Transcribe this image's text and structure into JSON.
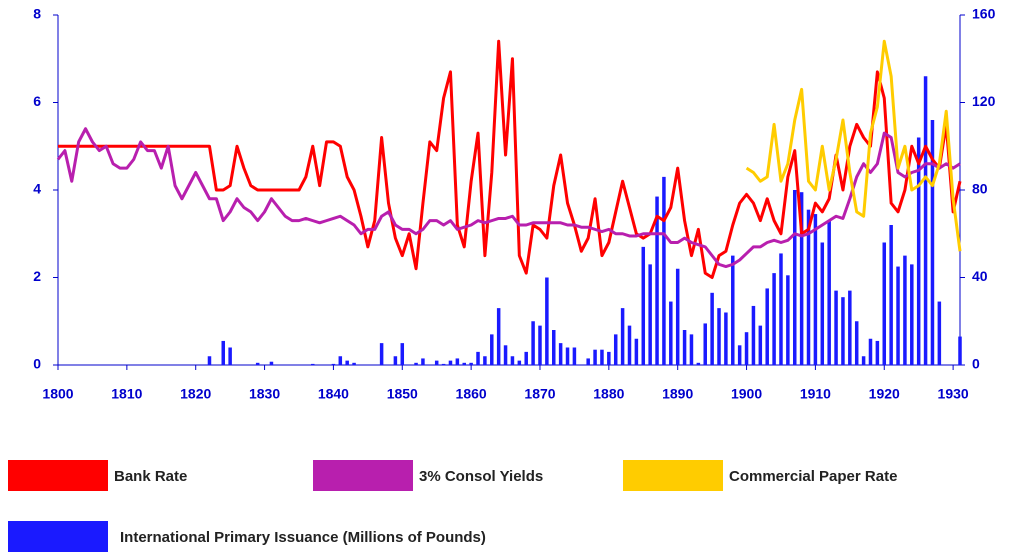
{
  "chart_data": {
    "type": "line",
    "x": [
      1800,
      1801,
      1802,
      1803,
      1804,
      1805,
      1806,
      1807,
      1808,
      1809,
      1810,
      1811,
      1812,
      1813,
      1814,
      1815,
      1816,
      1817,
      1818,
      1819,
      1820,
      1821,
      1822,
      1823,
      1824,
      1825,
      1826,
      1827,
      1828,
      1829,
      1830,
      1831,
      1832,
      1833,
      1834,
      1835,
      1836,
      1837,
      1838,
      1839,
      1840,
      1841,
      1842,
      1843,
      1844,
      1845,
      1846,
      1847,
      1848,
      1849,
      1850,
      1851,
      1852,
      1853,
      1854,
      1855,
      1856,
      1857,
      1858,
      1859,
      1860,
      1861,
      1862,
      1863,
      1864,
      1865,
      1866,
      1867,
      1868,
      1869,
      1870,
      1871,
      1872,
      1873,
      1874,
      1875,
      1876,
      1877,
      1878,
      1879,
      1880,
      1881,
      1882,
      1883,
      1884,
      1885,
      1886,
      1887,
      1888,
      1889,
      1890,
      1891,
      1892,
      1893,
      1894,
      1895,
      1896,
      1897,
      1898,
      1899,
      1900,
      1901,
      1902,
      1903,
      1904,
      1905,
      1906,
      1907,
      1908,
      1909,
      1910,
      1911,
      1912,
      1913,
      1914,
      1915,
      1916,
      1917,
      1918,
      1919,
      1920,
      1921,
      1922,
      1923,
      1924,
      1925,
      1926,
      1927,
      1928,
      1929,
      1930,
      1931
    ],
    "series": [
      {
        "name": "Bank Rate",
        "color": "#ff0000",
        "type": "line",
        "values": [
          5,
          5,
          5,
          5,
          5,
          5,
          5,
          5,
          5,
          5,
          5,
          5,
          5,
          5,
          5,
          5,
          5,
          5,
          5,
          5,
          5,
          5,
          5,
          4,
          4,
          4.1,
          5,
          4.5,
          4.1,
          4,
          4,
          4,
          4,
          4,
          4,
          4,
          4.3,
          5,
          4.1,
          5.1,
          5.1,
          5,
          4.3,
          4,
          3.4,
          2.7,
          3.3,
          5.2,
          3.7,
          2.9,
          2.5,
          3,
          2.2,
          3.7,
          5.1,
          4.9,
          6.1,
          6.7,
          3.2,
          2.7,
          4.2,
          5.3,
          2.5,
          4.4,
          7.4,
          4.8,
          7,
          2.5,
          2.1,
          3.2,
          3.1,
          2.9,
          4.1,
          4.8,
          3.7,
          3.2,
          2.6,
          2.9,
          3.8,
          2.5,
          2.8,
          3.5,
          4.2,
          3.6,
          3,
          2.9,
          3,
          3.4,
          3.3,
          3.6,
          4.5,
          3.3,
          2.5,
          3.1,
          2.1,
          2,
          2.5,
          2.6,
          3.2,
          3.7,
          3.9,
          3.7,
          3.3,
          3.8,
          3.3,
          3,
          4.3,
          4.9,
          3,
          3.1,
          3.7,
          3.5,
          3.8,
          4.8,
          4,
          5,
          5.5,
          5.2,
          5,
          6.7,
          6.1,
          3.7,
          3.5,
          4,
          5,
          4.6,
          5,
          4.7,
          4.5,
          5.5,
          3.5,
          4.2
        ]
      },
      {
        "name": "3% Consol Yields",
        "color": "#b81fae",
        "type": "line",
        "values": [
          4.7,
          4.9,
          4.2,
          5.1,
          5.4,
          5.1,
          4.9,
          5,
          4.6,
          4.5,
          4.5,
          4.7,
          5.1,
          4.9,
          4.9,
          4.5,
          5,
          4.1,
          3.8,
          4.1,
          4.4,
          4.1,
          3.8,
          3.8,
          3.3,
          3.5,
          3.8,
          3.6,
          3.5,
          3.3,
          3.5,
          3.8,
          3.6,
          3.4,
          3.3,
          3.3,
          3.35,
          3.3,
          3.25,
          3.3,
          3.35,
          3.4,
          3.3,
          3.2,
          3,
          3.1,
          3.1,
          3.4,
          3.5,
          3.2,
          3.1,
          3.1,
          3,
          3.1,
          3.3,
          3.3,
          3.2,
          3.3,
          3.1,
          3.15,
          3.2,
          3.3,
          3.25,
          3.3,
          3.35,
          3.35,
          3.4,
          3.2,
          3.2,
          3.25,
          3.25,
          3.25,
          3.25,
          3.25,
          3.2,
          3.2,
          3.15,
          3.15,
          3.1,
          3.05,
          3.1,
          3,
          3,
          2.95,
          2.95,
          3,
          3,
          3,
          3,
          2.8,
          2.8,
          2.9,
          2.8,
          2.75,
          2.7,
          2.5,
          2.3,
          2.25,
          2.3,
          2.4,
          2.55,
          2.7,
          2.7,
          2.8,
          2.85,
          2.8,
          2.85,
          3,
          2.95,
          3,
          3.1,
          3.2,
          3.3,
          3.4,
          3.35,
          3.8,
          4.3,
          4.6,
          4.4,
          4.6,
          5.3,
          5.2,
          4.4,
          4.3,
          4.4,
          4.45,
          4.6,
          4.6,
          4.5,
          4.6,
          4.5,
          4.6
        ]
      },
      {
        "name": "Commercial Paper Rate",
        "color": "#ffcc00",
        "type": "line",
        "values": [
          null,
          null,
          null,
          null,
          null,
          null,
          null,
          null,
          null,
          null,
          null,
          null,
          null,
          null,
          null,
          null,
          null,
          null,
          null,
          null,
          null,
          null,
          null,
          null,
          null,
          null,
          null,
          null,
          null,
          null,
          null,
          null,
          null,
          null,
          null,
          null,
          null,
          null,
          null,
          null,
          null,
          null,
          null,
          null,
          null,
          null,
          null,
          null,
          null,
          null,
          null,
          null,
          null,
          null,
          null,
          null,
          null,
          null,
          null,
          null,
          null,
          null,
          null,
          null,
          null,
          null,
          null,
          null,
          null,
          null,
          null,
          null,
          null,
          null,
          null,
          null,
          null,
          null,
          null,
          null,
          null,
          null,
          null,
          null,
          null,
          null,
          null,
          null,
          null,
          null,
          null,
          null,
          null,
          null,
          null,
          null,
          null,
          null,
          null,
          null,
          4.5,
          4.4,
          4.2,
          4.3,
          5.5,
          4.2,
          4.6,
          5.6,
          6.3,
          4.2,
          4,
          5,
          4,
          4.7,
          5.6,
          4.4,
          3.5,
          3.4,
          5.3,
          5.9,
          7.4,
          6.6,
          4.5,
          5,
          4,
          4.1,
          4.3,
          4.1,
          4.6,
          5.8,
          3.8,
          2.6
        ]
      },
      {
        "name": "International Primary Issuance (Millions of Pounds)",
        "color": "#1a1aff",
        "type": "bar",
        "axis": "y2",
        "values": [
          0,
          0,
          0,
          0,
          0,
          0,
          0,
          0,
          0,
          0,
          0,
          0,
          0,
          0,
          0,
          0,
          0,
          0,
          0,
          0,
          0,
          0,
          4,
          0,
          11,
          8,
          0,
          0,
          0,
          1,
          0,
          1.5,
          0,
          0,
          0,
          0,
          0,
          0.5,
          0,
          0,
          0.5,
          4,
          2,
          1,
          0,
          0,
          0,
          10,
          0,
          4,
          10,
          0,
          1,
          3,
          0,
          2,
          0.5,
          2,
          3,
          1,
          1,
          6,
          4,
          14,
          26,
          9,
          4,
          2,
          6,
          20,
          18,
          40,
          16,
          10,
          8,
          8,
          0,
          3,
          7,
          7,
          6,
          14,
          26,
          18,
          12,
          54,
          46,
          77,
          86,
          29,
          44,
          16,
          14,
          1,
          19,
          33,
          26,
          24,
          50,
          9,
          15,
          27,
          18,
          35,
          42,
          51,
          41,
          80,
          79,
          71,
          69,
          56,
          66,
          34,
          31,
          34,
          20,
          4,
          12,
          11,
          56,
          64,
          45,
          50,
          46,
          104,
          132,
          112,
          29,
          0,
          0,
          13
        ]
      }
    ],
    "xlim": [
      1800,
      1931
    ],
    "xticks": [
      1800,
      1810,
      1820,
      1830,
      1840,
      1850,
      1860,
      1870,
      1880,
      1890,
      1900,
      1910,
      1920,
      1930
    ],
    "ylim": [
      0,
      8
    ],
    "yticks": [
      0,
      2,
      4,
      6,
      8
    ],
    "y2lim": [
      0,
      160
    ],
    "y2ticks": [
      0,
      40,
      80,
      120,
      160
    ],
    "grid": false,
    "legend": "bottom"
  }
}
